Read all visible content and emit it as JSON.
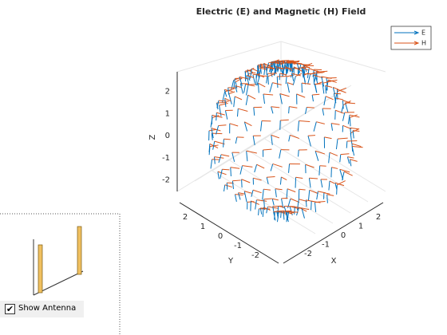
{
  "figure": {
    "title": "Electric (E) and Magnetic (H) Field",
    "legend": [
      {
        "name": "E",
        "color": "#0072bd"
      },
      {
        "name": "H",
        "color": "#d95319"
      }
    ],
    "axes": {
      "x_label": "X",
      "y_label": "Y",
      "z_label": "Z",
      "x_ticks": [
        -2,
        -1,
        0,
        1,
        2
      ],
      "y_ticks": [
        2,
        1,
        0,
        -1,
        -2
      ],
      "z_ticks": [
        2,
        1,
        0,
        -1,
        -2
      ]
    }
  },
  "panel": {
    "checkbox_label": "Show Antenna",
    "checked": true
  }
}
